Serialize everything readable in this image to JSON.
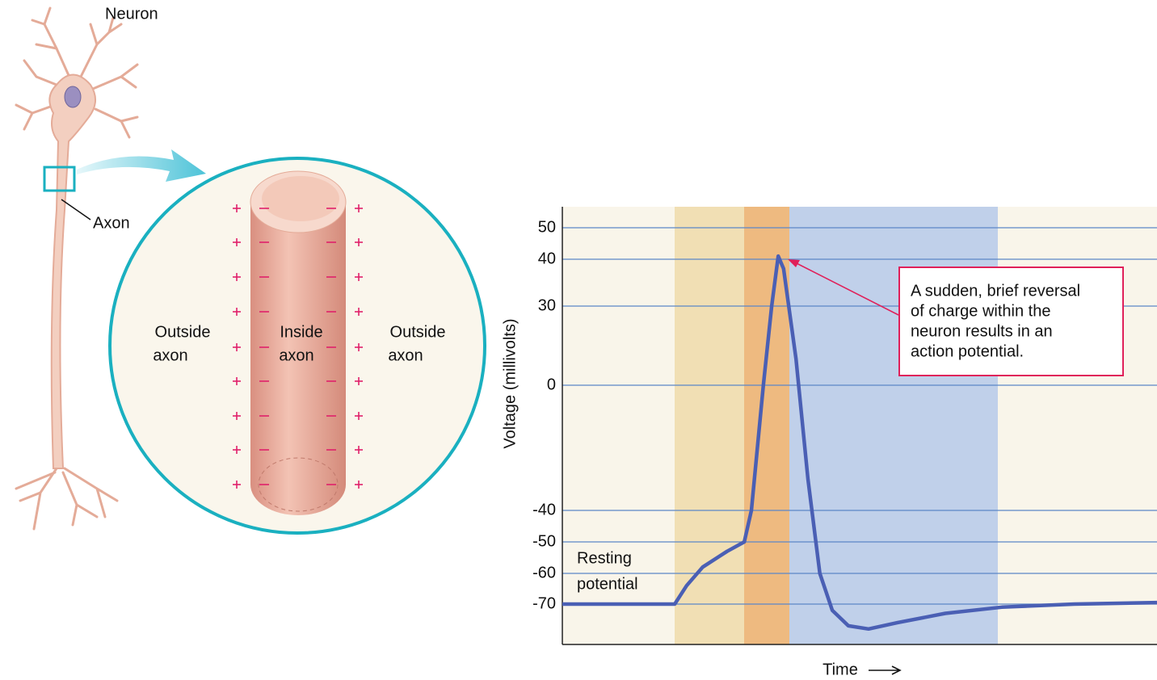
{
  "diagram": {
    "neuron_label": "Neuron",
    "axon_label": "Axon",
    "outside_left": [
      "Outside",
      "axon"
    ],
    "inside": [
      "Inside",
      "axon"
    ],
    "outside_right": [
      "Outside",
      "axon"
    ]
  },
  "chart_data": {
    "type": "line",
    "y_label": "Voltage (millivolts)",
    "x_label": "Time",
    "xlim": [
      0,
      100
    ],
    "ylim": [
      -83,
      53
    ],
    "yticks": [
      50,
      40,
      30,
      0,
      -40,
      -50,
      -60,
      -70
    ],
    "grid": true,
    "series": [
      {
        "color": "#4a5fb4",
        "x": [
          0,
          18.9,
          20.9,
          23.6,
          27.7,
          30.6,
          31.8,
          33.8,
          35.2,
          36.3,
          37.2,
          39.3,
          41.3,
          43.3,
          45.4,
          48.1,
          51.5,
          56.3,
          64.4,
          73.9,
          86.1,
          100
        ],
        "values": [
          -70,
          -70,
          -64,
          -58,
          -53,
          -50,
          -40,
          0,
          30,
          41,
          38,
          10,
          -30,
          -60,
          -72,
          -77,
          -78,
          -76,
          -73,
          -71,
          -70,
          -69.5
        ]
      }
    ],
    "annotations": {
      "resting": [
        "Resting",
        "potential"
      ],
      "callout": [
        "A sudden, brief reversal",
        "of charge within the",
        "neuron results in an",
        "action potential."
      ]
    }
  }
}
